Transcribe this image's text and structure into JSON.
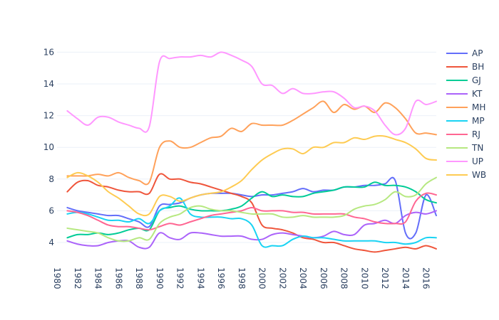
{
  "chart_data": {
    "type": "line",
    "title": "",
    "xlabel": "",
    "ylabel": "",
    "xlim": [
      1980,
      2017
    ],
    "ylim": [
      2.7,
      16.6
    ],
    "x_ticks": [
      "1980",
      "1982",
      "1984",
      "1986",
      "1988",
      "1990",
      "1992",
      "1994",
      "1996",
      "1998",
      "2000",
      "2002",
      "2004",
      "2006",
      "2008",
      "2010",
      "2012",
      "2014",
      "2016"
    ],
    "y_ticks": [
      "4",
      "6",
      "8",
      "10",
      "12",
      "14",
      "16"
    ],
    "grid": true,
    "legend": "right",
    "x": [
      1981,
      1982,
      1983,
      1984,
      1985,
      1986,
      1987,
      1988,
      1989,
      1990,
      1991,
      1992,
      1993,
      1994,
      1995,
      1996,
      1997,
      1998,
      1999,
      2000,
      2001,
      2002,
      2003,
      2004,
      2005,
      2006,
      2007,
      2008,
      2009,
      2010,
      2011,
      2012,
      2013,
      2014,
      2015,
      2016,
      2017
    ],
    "series": [
      {
        "name": "AP",
        "color": "#636efa",
        "values": [
          6.2,
          6.0,
          5.9,
          5.8,
          5.7,
          5.7,
          5.5,
          5.3,
          5.0,
          6.3,
          6.4,
          6.5,
          6.8,
          7.0,
          7.1,
          7.1,
          7.1,
          7.0,
          6.9,
          7.0,
          7.0,
          7.1,
          7.2,
          7.4,
          7.2,
          7.3,
          7.3,
          7.5,
          7.5,
          7.6,
          7.6,
          7.7,
          7.9,
          4.6,
          4.6,
          7.0,
          5.7
        ]
      },
      {
        "name": "BH",
        "color": "#ef553b",
        "values": [
          7.2,
          7.8,
          7.9,
          7.6,
          7.5,
          7.3,
          7.2,
          7.2,
          7.1,
          8.3,
          8.0,
          8.0,
          7.8,
          7.7,
          7.5,
          7.3,
          7.1,
          6.9,
          6.5,
          5.1,
          4.9,
          4.8,
          4.6,
          4.3,
          4.2,
          4.0,
          4.0,
          3.8,
          3.6,
          3.5,
          3.4,
          3.5,
          3.6,
          3.7,
          3.6,
          3.8,
          3.6
        ]
      },
      {
        "name": "GJ",
        "color": "#00cc96",
        "values": [
          4.3,
          4.5,
          4.5,
          4.6,
          4.5,
          4.6,
          4.8,
          4.9,
          4.8,
          6.0,
          6.2,
          6.3,
          6.1,
          6.0,
          6.0,
          6.0,
          6.1,
          6.3,
          6.8,
          7.2,
          6.9,
          7.0,
          6.9,
          6.9,
          7.1,
          7.2,
          7.3,
          7.5,
          7.5,
          7.5,
          7.8,
          7.6,
          7.6,
          7.5,
          7.2,
          6.7,
          6.5
        ]
      },
      {
        "name": "KT",
        "color": "#ab63fa",
        "values": [
          4.1,
          3.9,
          3.8,
          3.8,
          4.0,
          4.1,
          4.1,
          3.7,
          3.7,
          4.6,
          4.3,
          4.2,
          4.6,
          4.6,
          4.5,
          4.4,
          4.4,
          4.4,
          4.2,
          4.2,
          4.5,
          4.6,
          4.5,
          4.4,
          4.3,
          4.4,
          4.7,
          4.5,
          4.5,
          5.1,
          5.2,
          5.4,
          5.2,
          5.7,
          5.9,
          5.8,
          6.0
        ]
      },
      {
        "name": "MH",
        "color": "#ffa15a",
        "values": [
          8.2,
          8.2,
          8.2,
          8.3,
          8.2,
          8.4,
          8.1,
          7.9,
          7.8,
          10.0,
          10.4,
          10.0,
          10.0,
          10.3,
          10.6,
          10.7,
          11.2,
          11.0,
          11.5,
          11.4,
          11.4,
          11.4,
          11.7,
          12.1,
          12.5,
          12.9,
          12.2,
          12.7,
          12.4,
          12.6,
          12.2,
          12.8,
          12.5,
          11.8,
          10.9,
          10.9,
          10.8
        ]
      },
      {
        "name": "MP",
        "color": "#19d3f3",
        "values": [
          5.8,
          5.9,
          5.8,
          5.6,
          5.4,
          5.4,
          5.3,
          5.5,
          5.2,
          6.0,
          6.3,
          6.8,
          5.8,
          5.6,
          5.6,
          5.6,
          5.5,
          5.5,
          5.1,
          3.8,
          3.8,
          3.8,
          4.2,
          4.4,
          4.3,
          4.3,
          4.2,
          4.1,
          4.1,
          4.1,
          4.1,
          4.0,
          4.0,
          3.9,
          4.0,
          4.3,
          4.3
        ]
      },
      {
        "name": "RJ",
        "color": "#ff6692",
        "values": [
          6.0,
          5.9,
          5.7,
          5.4,
          5.1,
          5.0,
          5.0,
          4.9,
          4.8,
          5.0,
          5.2,
          5.1,
          5.3,
          5.5,
          5.7,
          5.8,
          5.9,
          6.0,
          6.2,
          6.0,
          6.0,
          6.0,
          5.9,
          5.9,
          5.8,
          5.8,
          5.8,
          5.8,
          5.6,
          5.5,
          5.3,
          5.2,
          5.2,
          5.3,
          6.6,
          7.1,
          7.0
        ]
      },
      {
        "name": "TN",
        "color": "#b6e880",
        "values": [
          4.9,
          4.8,
          4.7,
          4.6,
          4.3,
          4.1,
          4.1,
          4.3,
          4.2,
          5.2,
          5.6,
          5.8,
          6.2,
          6.3,
          6.1,
          6.0,
          6.0,
          5.9,
          5.8,
          5.8,
          5.8,
          5.6,
          5.6,
          5.7,
          5.6,
          5.6,
          5.6,
          5.7,
          6.1,
          6.3,
          6.4,
          6.7,
          7.2,
          6.9,
          7.0,
          7.7,
          8.1
        ]
      },
      {
        "name": "UP",
        "color": "#ff97ff",
        "values": [
          12.3,
          11.8,
          11.4,
          11.9,
          11.9,
          11.6,
          11.4,
          11.2,
          11.3,
          15.4,
          15.6,
          15.7,
          15.7,
          15.8,
          15.7,
          16.0,
          15.8,
          15.5,
          15.1,
          14.0,
          13.9,
          13.4,
          13.7,
          13.4,
          13.4,
          13.5,
          13.5,
          13.1,
          12.5,
          12.6,
          12.3,
          11.4,
          10.8,
          11.2,
          12.9,
          12.7,
          12.9
        ]
      },
      {
        "name": "WB",
        "color": "#fecb52",
        "values": [
          8.1,
          8.4,
          8.2,
          7.8,
          7.2,
          6.8,
          6.3,
          5.8,
          5.8,
          6.9,
          6.9,
          6.6,
          6.8,
          7.0,
          7.1,
          7.2,
          7.5,
          7.9,
          8.6,
          9.2,
          9.6,
          9.9,
          9.9,
          9.6,
          10.0,
          10.0,
          10.3,
          10.3,
          10.6,
          10.5,
          10.7,
          10.7,
          10.5,
          10.3,
          9.9,
          9.3,
          9.2
        ]
      }
    ]
  }
}
